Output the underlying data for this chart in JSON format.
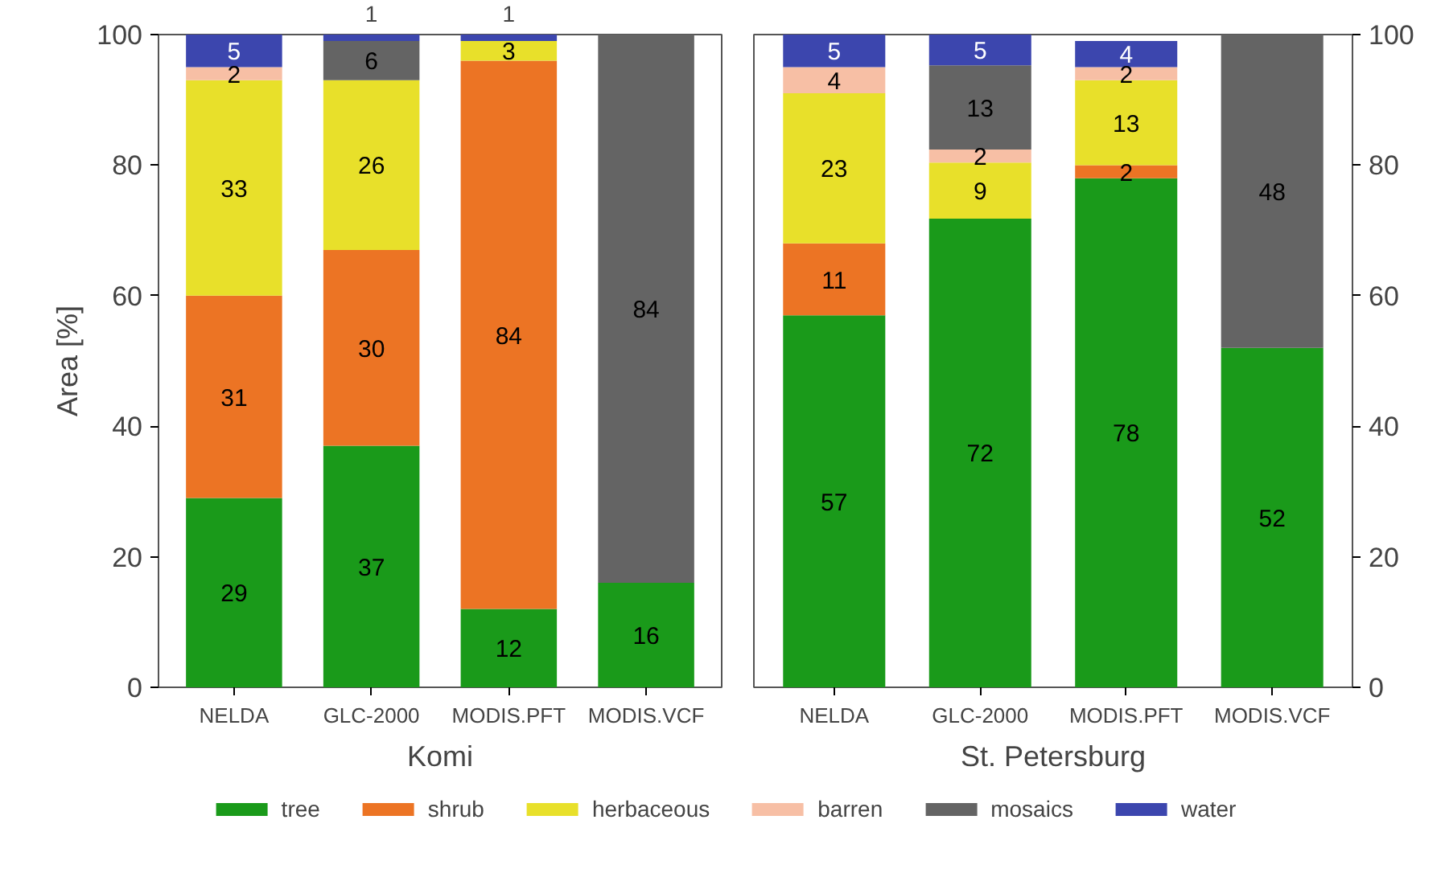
{
  "chart_data": [
    {
      "type": "bar",
      "stacked": true,
      "xlabel": "Komi",
      "ylabel": "Area [%]",
      "categories": [
        "NELDA",
        "GLC-2000",
        "MODIS.PFT",
        "MODIS.VCF"
      ],
      "ylim": [
        0,
        100
      ],
      "yticks": [
        0,
        20,
        40,
        60,
        80,
        100
      ],
      "grid": false,
      "legend": "bottom",
      "series": [
        {
          "name": "tree",
          "color": "#1a9a1a",
          "values": [
            29,
            37,
            12,
            16
          ],
          "value_labels": [
            "29",
            "37",
            "12",
            "16"
          ]
        },
        {
          "name": "shrub",
          "color": "#ec7424",
          "values": [
            31,
            30,
            84,
            null
          ],
          "value_labels": [
            "31",
            "30",
            "84",
            null
          ]
        },
        {
          "name": "herbaceous",
          "color": "#e8e02a",
          "values": [
            33,
            26,
            3,
            null
          ],
          "value_labels": [
            "33",
            "26",
            "3",
            null
          ]
        },
        {
          "name": "barren",
          "color": "#f7bfa5",
          "values": [
            2,
            null,
            null,
            null
          ],
          "value_labels": [
            "2",
            null,
            null,
            null
          ]
        },
        {
          "name": "mosaics",
          "color": "#646464",
          "values": [
            null,
            6,
            null,
            84
          ],
          "value_labels": [
            null,
            "6",
            null,
            "84"
          ]
        },
        {
          "name": "water",
          "color": "#3c46ae",
          "values": [
            5,
            1,
            1,
            null
          ],
          "value_labels": [
            "5",
            "1",
            "1",
            null
          ]
        }
      ]
    },
    {
      "type": "bar",
      "stacked": true,
      "xlabel": "St. Petersburg",
      "categories": [
        "NELDA",
        "GLC-2000",
        "MODIS.PFT",
        "MODIS.VCF"
      ],
      "ylim": [
        0,
        100
      ],
      "yticks": [
        0,
        20,
        40,
        60,
        80,
        100
      ],
      "grid": false,
      "series": [
        {
          "color": "#1a9a1a",
          "values": [
            57,
            71.8,
            78,
            52
          ],
          "value_labels": [
            "57",
            "72",
            "78",
            "52"
          ]
        },
        {
          "color": "#ec7424",
          "values": [
            11,
            null,
            2,
            null
          ],
          "value_labels": [
            "11",
            null,
            "2",
            null
          ]
        },
        {
          "color": "#e8e02a",
          "values": [
            23,
            8.6,
            13,
            null
          ],
          "value_labels": [
            "23",
            "9",
            "13",
            null
          ]
        },
        {
          "color": "#f7bfa5",
          "values": [
            4,
            2,
            2,
            null
          ],
          "value_labels": [
            "4",
            "2",
            "2",
            null
          ]
        },
        {
          "color": "#646464",
          "values": [
            null,
            12.9,
            null,
            48
          ],
          "value_labels": [
            null,
            "13",
            null,
            "48"
          ]
        },
        {
          "color": "#3c46ae",
          "values": [
            5,
            4.7,
            4,
            null
          ],
          "value_labels": [
            "5",
            "5",
            "4",
            null
          ]
        }
      ]
    }
  ]
}
